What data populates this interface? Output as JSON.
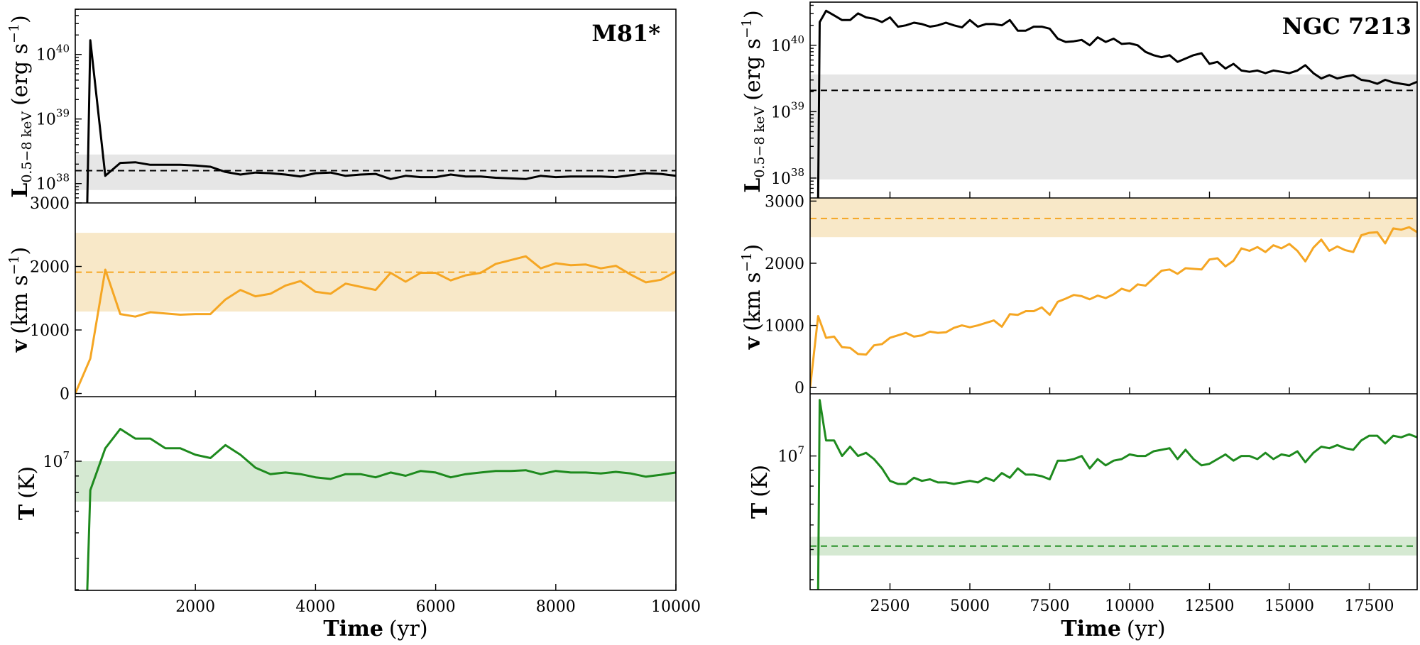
{
  "colors": {
    "luminosity": "#000000",
    "velocity": "#f5a623",
    "temperature": "#1e8a1e",
    "luminosity_band": "#e6e6e6",
    "velocity_band": "#f8e8c8",
    "temperature_band": "#d5e9d2"
  },
  "chart_data": [
    {
      "type": "line",
      "title": "M81*",
      "xlabel_bold": "Time",
      "xlabel_unit": "(yr)",
      "xlim": [
        0,
        10000
      ],
      "xticks": [
        2000,
        4000,
        6000,
        8000,
        10000
      ],
      "xtick_labels": [
        "2000",
        "4000",
        "6000",
        "8000",
        "10000"
      ],
      "panels": [
        {
          "ylabel_bold": "L",
          "ylabel_sub": "0.5−8 keV",
          "ylabel_unit": "(erg s",
          "ylabel_unit_sup": "−1",
          "ylabel_unit_end": ")",
          "yscale": "log",
          "ylim_log10": [
            37.7,
            40.7
          ],
          "yticks_log10": [
            38,
            39,
            40
          ],
          "ytick_base": "10",
          "ytick_exponents": [
            "38",
            "39",
            "40"
          ],
          "series": {
            "name": "L",
            "x": [
              200,
              250,
              500,
              750,
              1000,
              1250,
              1500,
              1750,
              2000,
              2250,
              2500,
              2750,
              3000,
              3250,
              3500,
              3750,
              4000,
              4250,
              4500,
              4750,
              5000,
              5250,
              5500,
              5750,
              6000,
              6250,
              6500,
              6750,
              7000,
              7250,
              7500,
              7750,
              8000,
              8250,
              8500,
              8750,
              9000,
              9250,
              9500,
              9750,
              10000
            ],
            "y_log10": [
              37.7,
              40.22,
              38.12,
              38.32,
              38.33,
              38.29,
              38.29,
              38.29,
              38.28,
              38.26,
              38.18,
              38.14,
              38.17,
              38.16,
              38.14,
              38.11,
              38.16,
              38.17,
              38.12,
              38.14,
              38.15,
              38.07,
              38.12,
              38.1,
              38.1,
              38.14,
              38.11,
              38.11,
              38.09,
              38.08,
              38.07,
              38.12,
              38.1,
              38.11,
              38.11,
              38.11,
              38.1,
              38.13,
              38.16,
              38.15,
              38.12
            ]
          },
          "reference_log10": 38.2,
          "band_log10": [
            37.9,
            38.45
          ]
        },
        {
          "ylabel_bold": "v",
          "ylabel_unit": "(km s",
          "ylabel_unit_sup": "−1",
          "ylabel_unit_end": ")",
          "yscale": "linear",
          "ylim": [
            -50,
            3000
          ],
          "yticks": [
            0,
            1000,
            2000,
            3000
          ],
          "ytick_labels": [
            "0",
            "1000",
            "2000",
            "3000"
          ],
          "series": {
            "name": "v",
            "x": [
              0,
              250,
              500,
              750,
              1000,
              1250,
              1500,
              1750,
              2000,
              2250,
              2500,
              2750,
              3000,
              3250,
              3500,
              3750,
              4000,
              4250,
              4500,
              4750,
              5000,
              5250,
              5500,
              5750,
              6000,
              6250,
              6500,
              6750,
              7000,
              7250,
              7500,
              7750,
              8000,
              8250,
              8500,
              8750,
              9000,
              9250,
              9500,
              9750,
              10000
            ],
            "y": [
              0,
              550,
              1950,
              1250,
              1210,
              1280,
              1260,
              1240,
              1250,
              1250,
              1480,
              1630,
              1530,
              1570,
              1700,
              1770,
              1600,
              1570,
              1730,
              1680,
              1630,
              1900,
              1760,
              1900,
              1900,
              1780,
              1860,
              1900,
              2040,
              2100,
              2160,
              1970,
              2050,
              2020,
              2030,
              1970,
              2010,
              1870,
              1750,
              1790,
              1920
            ]
          },
          "reference": 1910,
          "band": [
            1290,
            2530
          ]
        },
        {
          "ylabel_bold": "T",
          "ylabel_unit": "(K)",
          "yscale": "log",
          "ylim_log10": [
            6.6,
            7.2
          ],
          "yticks_log10": [
            7
          ],
          "ytick_base": "10",
          "ytick_exponents": [
            "7"
          ],
          "series": {
            "name": "T",
            "x": [
              200,
              250,
              500,
              750,
              1000,
              1250,
              1500,
              1750,
              2000,
              2250,
              2500,
              2750,
              3000,
              3250,
              3500,
              3750,
              4000,
              4250,
              4500,
              4750,
              5000,
              5250,
              5500,
              5750,
              6000,
              6250,
              6500,
              6750,
              7000,
              7250,
              7500,
              7750,
              8000,
              8250,
              8500,
              8750,
              9000,
              9250,
              9500,
              9750,
              10000
            ],
            "y_log10": [
              6.6,
              6.91,
              7.04,
              7.1,
              7.07,
              7.07,
              7.04,
              7.04,
              7.02,
              7.01,
              7.05,
              7.02,
              6.98,
              6.96,
              6.965,
              6.96,
              6.95,
              6.945,
              6.96,
              6.96,
              6.95,
              6.965,
              6.955,
              6.97,
              6.965,
              6.95,
              6.96,
              6.965,
              6.97,
              6.97,
              6.972,
              6.96,
              6.97,
              6.965,
              6.965,
              6.962,
              6.967,
              6.962,
              6.952,
              6.958,
              6.965
            ]
          },
          "band_log10": [
            6.875,
            7.0
          ]
        }
      ]
    },
    {
      "type": "line",
      "title": "NGC 7213",
      "xlabel_bold": "Time",
      "xlabel_unit": "(yr)",
      "xlim": [
        0,
        19000
      ],
      "xticks": [
        2500,
        5000,
        7500,
        10000,
        12500,
        15000,
        17500
      ],
      "xtick_labels": [
        "2500",
        "5000",
        "7500",
        "10000",
        "12500",
        "15000",
        "17500"
      ],
      "panels": [
        {
          "ylabel_bold": "L",
          "ylabel_sub": "0.5−8 keV",
          "ylabel_unit": "(erg s",
          "ylabel_unit_sup": "−1",
          "ylabel_unit_end": ")",
          "yscale": "log",
          "ylim_log10": [
            37.7,
            40.65
          ],
          "yticks_log10": [
            38,
            39,
            40
          ],
          "ytick_base": "10",
          "ytick_exponents": [
            "38",
            "39",
            "40"
          ],
          "series": {
            "name": "L",
            "x": [
              250,
              300,
              500,
              750,
              1000,
              1250,
              1500,
              1750,
              2000,
              2250,
              2500,
              2750,
              3000,
              3250,
              3500,
              3750,
              4000,
              4250,
              4500,
              4750,
              5000,
              5250,
              5500,
              5750,
              6000,
              6250,
              6500,
              6750,
              7000,
              7250,
              7500,
              7750,
              8000,
              8250,
              8500,
              8750,
              9000,
              9250,
              9500,
              9750,
              10000,
              10250,
              10500,
              10750,
              11000,
              11250,
              11500,
              11750,
              12000,
              12250,
              12500,
              12750,
              13000,
              13250,
              13500,
              13750,
              14000,
              14250,
              14500,
              14750,
              15000,
              15250,
              15500,
              15750,
              16000,
              16250,
              16500,
              16750,
              17000,
              17250,
              17500,
              17750,
              18000,
              18250,
              18500,
              18750,
              19000
            ],
            "y_log10": [
              37.7,
              40.35,
              40.52,
              40.45,
              40.38,
              40.38,
              40.48,
              40.42,
              40.4,
              40.35,
              40.42,
              40.28,
              40.3,
              40.34,
              40.32,
              40.28,
              40.3,
              40.34,
              40.3,
              40.27,
              40.38,
              40.28,
              40.32,
              40.32,
              40.3,
              40.38,
              40.22,
              40.22,
              40.28,
              40.28,
              40.25,
              40.1,
              40.05,
              40.06,
              40.08,
              40.0,
              40.12,
              40.05,
              40.1,
              40.02,
              40.03,
              40.0,
              39.9,
              39.85,
              39.82,
              39.85,
              39.75,
              39.8,
              39.85,
              39.88,
              39.72,
              39.75,
              39.65,
              39.72,
              39.62,
              39.6,
              39.62,
              39.58,
              39.62,
              39.6,
              39.58,
              39.62,
              39.7,
              39.58,
              39.5,
              39.55,
              39.5,
              39.53,
              39.55,
              39.48,
              39.46,
              39.42,
              39.48,
              39.44,
              39.42,
              39.4,
              39.45
            ]
          },
          "reference_log10": 39.32,
          "band_log10": [
            37.98,
            39.56
          ]
        },
        {
          "ylabel_bold": "v",
          "ylabel_unit": "(km s",
          "ylabel_unit_sup": "−1",
          "ylabel_unit_end": ")",
          "yscale": "linear",
          "ylim": [
            -100,
            3050
          ],
          "yticks": [
            0,
            1000,
            2000,
            3000
          ],
          "ytick_labels": [
            "0",
            "1000",
            "2000",
            "3000"
          ],
          "series": {
            "name": "v",
            "x": [
              0,
              250,
              500,
              750,
              1000,
              1250,
              1500,
              1750,
              2000,
              2250,
              2500,
              2750,
              3000,
              3250,
              3500,
              3750,
              4000,
              4250,
              4500,
              4750,
              5000,
              5250,
              5500,
              5750,
              6000,
              6250,
              6500,
              6750,
              7000,
              7250,
              7500,
              7750,
              8000,
              8250,
              8500,
              8750,
              9000,
              9250,
              9500,
              9750,
              10000,
              10250,
              10500,
              10750,
              11000,
              11250,
              11500,
              11750,
              12000,
              12250,
              12500,
              12750,
              13000,
              13250,
              13500,
              13750,
              14000,
              14250,
              14500,
              14750,
              15000,
              15250,
              15500,
              15750,
              16000,
              16250,
              16500,
              16750,
              17000,
              17250,
              17500,
              17750,
              18000,
              18250,
              18500,
              18750,
              19000
            ],
            "y": [
              0,
              1150,
              800,
              820,
              650,
              640,
              540,
              530,
              680,
              700,
              800,
              840,
              880,
              820,
              840,
              900,
              880,
              890,
              960,
              1000,
              970,
              1000,
              1040,
              1080,
              980,
              1180,
              1170,
              1230,
              1230,
              1290,
              1170,
              1380,
              1430,
              1490,
              1470,
              1420,
              1480,
              1440,
              1500,
              1590,
              1550,
              1660,
              1640,
              1760,
              1880,
              1900,
              1830,
              1920,
              1910,
              1900,
              2060,
              2080,
              1950,
              2040,
              2240,
              2200,
              2260,
              2180,
              2290,
              2240,
              2310,
              2200,
              2030,
              2250,
              2380,
              2200,
              2270,
              2210,
              2180,
              2450,
              2490,
              2500,
              2320,
              2560,
              2540,
              2580,
              2500
            ]
          },
          "reference": 2720,
          "band": [
            2420,
            3050
          ]
        },
        {
          "ylabel_bold": "T",
          "ylabel_unit": "(K)",
          "yscale": "log",
          "ylim_log10": [
            6.57,
            7.2
          ],
          "yticks_log10": [
            7
          ],
          "ytick_base": "10",
          "ytick_exponents": [
            "7"
          ],
          "series": {
            "name": "T",
            "x": [
              250,
              300,
              500,
              750,
              1000,
              1250,
              1500,
              1750,
              2000,
              2250,
              2500,
              2750,
              3000,
              3250,
              3500,
              3750,
              4000,
              4250,
              4500,
              4750,
              5000,
              5250,
              5500,
              5750,
              6000,
              6250,
              6500,
              6750,
              7000,
              7250,
              7500,
              7750,
              8000,
              8250,
              8500,
              8750,
              9000,
              9250,
              9500,
              9750,
              10000,
              10250,
              10500,
              10750,
              11000,
              11250,
              11500,
              11750,
              12000,
              12250,
              12500,
              12750,
              13000,
              13250,
              13500,
              13750,
              14000,
              14250,
              14500,
              14750,
              15000,
              15250,
              15500,
              15750,
              16000,
              16250,
              16500,
              16750,
              17000,
              17250,
              17500,
              17750,
              18000,
              18250,
              18500,
              18750,
              19000
            ],
            "y_log10": [
              6.57,
              7.18,
              7.05,
              7.05,
              7.0,
              7.03,
              7.0,
              7.01,
              6.99,
              6.96,
              6.92,
              6.91,
              6.91,
              6.93,
              6.92,
              6.925,
              6.915,
              6.915,
              6.91,
              6.915,
              6.92,
              6.915,
              6.93,
              6.92,
              6.945,
              6.93,
              6.96,
              6.94,
              6.94,
              6.935,
              6.925,
              6.985,
              6.985,
              6.99,
              7.0,
              6.96,
              6.99,
              6.97,
              6.985,
              6.99,
              7.005,
              7.0,
              7.0,
              7.015,
              7.02,
              7.025,
              6.99,
              7.02,
              6.99,
              6.97,
              6.975,
              6.99,
              7.005,
              6.985,
              7.0,
              7.0,
              6.99,
              7.01,
              6.99,
              7.005,
              7.0,
              7.015,
              6.98,
              7.01,
              7.03,
              7.025,
              7.035,
              7.025,
              7.02,
              7.05,
              7.065,
              7.065,
              7.04,
              7.065,
              7.06,
              7.07,
              7.06
            ]
          },
          "reference_log10": 6.71,
          "band_log10": [
            6.68,
            6.74
          ]
        }
      ]
    }
  ]
}
